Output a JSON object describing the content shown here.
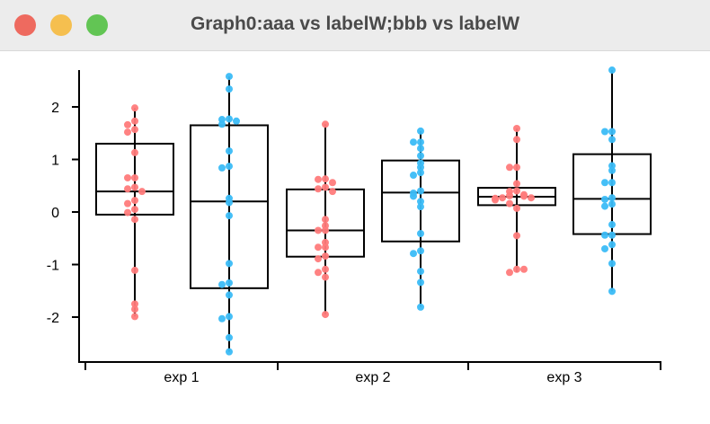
{
  "window": {
    "title": "Graph0:aaa vs labelW;bbb vs labelW",
    "buttons": {
      "close_color": "#ee6a5f",
      "minimize_color": "#f5bf4f",
      "zoom_color": "#62c554"
    }
  },
  "chart_data": {
    "type": "box",
    "title": "",
    "xlabel": "",
    "ylabel": "",
    "categories": [
      "exp 1",
      "exp 2",
      "exp 3"
    ],
    "ylim": [
      -2.85,
      2.8
    ],
    "yticks": [
      2,
      1,
      0,
      -1,
      -2
    ],
    "ytick_labels": [
      "2",
      "1",
      "0",
      "-1",
      "-2"
    ],
    "grid": false,
    "series": [
      {
        "wave": "aaa",
        "color": "#ff7b7b",
        "boxes": [
          {
            "q1": -0.05,
            "median": 0.39,
            "q3": 1.3,
            "min": -1.99,
            "max": 1.98
          },
          {
            "q1": -0.85,
            "median": -0.35,
            "q3": 0.43,
            "min": -1.95,
            "max": 1.67
          },
          {
            "q1": 0.13,
            "median": 0.29,
            "q3": 0.46,
            "min": -1.15,
            "max": 1.59
          }
        ],
        "points": [
          [
            1.98,
            1.73,
            1.66,
            1.57,
            1.52,
            1.13,
            0.65,
            0.65,
            0.47,
            0.44,
            0.39,
            0.22,
            0.16,
            0.05,
            -0.01,
            -0.14,
            -1.11,
            -1.75,
            -1.85,
            -1.99
          ],
          [
            1.67,
            0.63,
            0.62,
            0.56,
            0.47,
            0.44,
            0.39,
            -0.14,
            -0.26,
            -0.35,
            -0.35,
            -0.58,
            -0.67,
            -0.67,
            -0.84,
            -0.89,
            -1.09,
            -1.15,
            -1.24,
            -1.95
          ],
          [
            1.59,
            1.38,
            0.85,
            0.85,
            0.54,
            0.4,
            0.39,
            0.33,
            0.31,
            0.3,
            0.27,
            0.27,
            0.26,
            0.23,
            0.16,
            0.07,
            -0.45,
            -1.09,
            -1.15,
            -1.09
          ]
        ]
      },
      {
        "wave": "bbb",
        "color": "#3bbcf7",
        "boxes": [
          {
            "q1": -1.45,
            "median": 0.2,
            "q3": 1.65,
            "min": -2.66,
            "max": 2.58
          },
          {
            "q1": -0.56,
            "median": 0.37,
            "q3": 0.98,
            "min": -1.81,
            "max": 1.54
          },
          {
            "q1": -0.42,
            "median": 0.25,
            "q3": 1.1,
            "min": -1.51,
            "max": 2.7
          }
        ],
        "points": [
          [
            2.58,
            2.34,
            1.77,
            1.76,
            1.73,
            1.67,
            1.16,
            0.87,
            0.84,
            0.26,
            0.18,
            -0.07,
            -0.98,
            -1.35,
            -1.38,
            -1.58,
            -1.99,
            -2.03,
            -2.39,
            -2.66
          ],
          [
            1.54,
            1.33,
            1.33,
            1.21,
            1.07,
            0.93,
            0.85,
            0.75,
            0.7,
            0.4,
            0.36,
            0.3,
            0.2,
            0.1,
            -0.41,
            -0.74,
            -0.79,
            -1.13,
            -1.34,
            -1.81
          ],
          [
            2.7,
            1.53,
            1.53,
            1.38,
            0.88,
            0.79,
            0.56,
            0.56,
            0.27,
            0.24,
            0.15,
            0.11,
            -0.24,
            -0.44,
            -0.44,
            -0.62,
            -0.7,
            -0.98,
            -1.51
          ]
        ]
      }
    ]
  }
}
